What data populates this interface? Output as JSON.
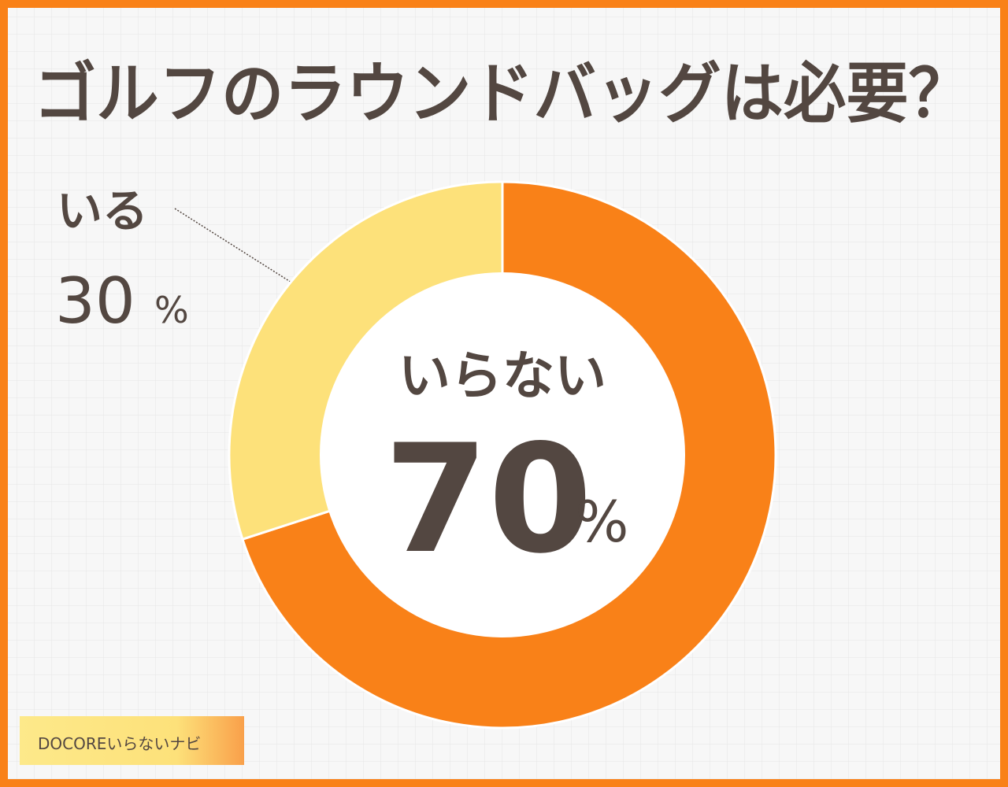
{
  "chart_data": {
    "type": "pie",
    "title": "ゴルフのラウンドバッグは必要？",
    "categories": [
      "いらない",
      "いる"
    ],
    "values": [
      70,
      30
    ],
    "unit": "%",
    "colors": [
      "#f98118",
      "#fde17a"
    ],
    "source": "DOCOREいらないナビ"
  }
}
